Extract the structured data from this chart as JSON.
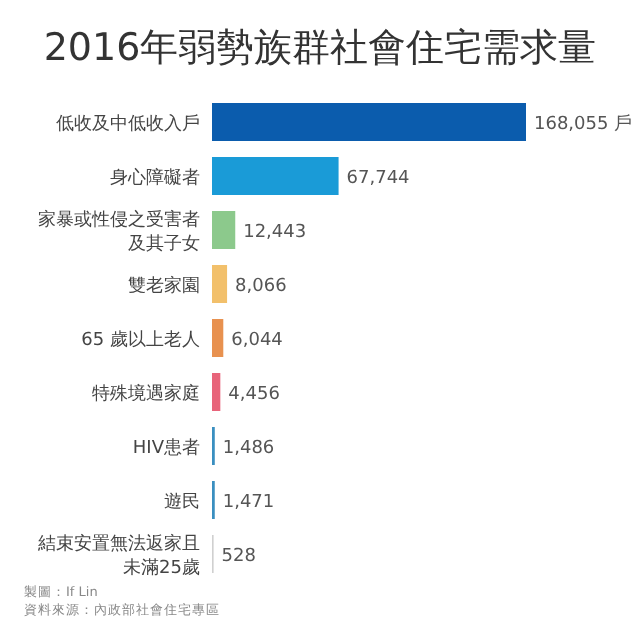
{
  "chart_data": {
    "type": "bar",
    "orientation": "horizontal",
    "title": "2016年弱勢族群社會住宅需求量",
    "categories": [
      "低收及中低收入戶",
      "身心障礙者",
      "家暴或性侵之受害者及其子女",
      "雙老家園",
      "65 歲以上老人",
      "特殊境遇家庭",
      "HIV患者",
      "遊民",
      "結束安置無法返家且未滿25歲"
    ],
    "values": [
      168055,
      67744,
      12443,
      8066,
      6044,
      4456,
      1486,
      1471,
      528
    ],
    "colors": [
      "#0b5cad",
      "#1a9bd7",
      "#8cc98c",
      "#f2c06b",
      "#e8914f",
      "#e8647a",
      "#3a8fc0",
      "#3a8fc0",
      "#d0d0d0"
    ],
    "value_labels": [
      "168,055 戶",
      "67,744",
      "12,443",
      "8,066",
      "6,044",
      "4,456",
      "1,486",
      "1,471",
      "528"
    ],
    "annotations": [
      "製圖：If Lin",
      "資料來源：內政部社會住宅專區"
    ]
  }
}
